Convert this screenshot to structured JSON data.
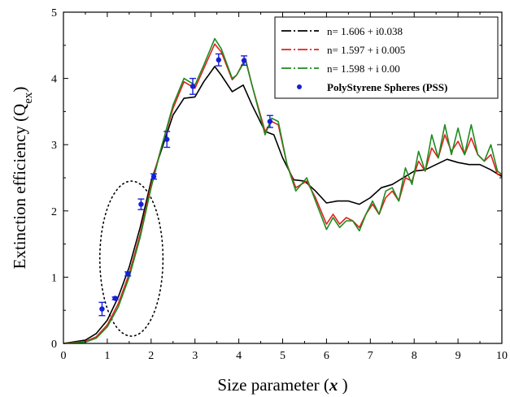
{
  "chart_data": {
    "type": "line",
    "xlabel": "Size parameter (x )",
    "ylabel": "Extinction efficiency (Qex)",
    "xlim": [
      0,
      10
    ],
    "ylim": [
      0,
      5
    ],
    "x_ticks": [
      "0",
      "1",
      "2",
      "3",
      "4",
      "5",
      "6",
      "7",
      "8",
      "9",
      "10"
    ],
    "y_ticks": [
      "0",
      "1",
      "2",
      "3",
      "4",
      "5"
    ],
    "grid": false,
    "legend_position": "top-right",
    "legend": [
      {
        "label": "n= 1.606 + i0.038",
        "color": "#000000",
        "style": "dash-dot"
      },
      {
        "label": "n= 1.597 + i 0.005",
        "color": "#e0221e",
        "style": "dash-dot"
      },
      {
        "label": "n= 1.598 + i 0.00",
        "color": "#1f8a1f",
        "style": "dash-dot"
      },
      {
        "label": "PolyStyrene Spheres (PSS)",
        "color": "#1520d8",
        "style": "marker"
      }
    ],
    "series": [
      {
        "name": "n= 1.606 + i0.038",
        "color": "#000000",
        "x": [
          0,
          0.5,
          0.75,
          1.0,
          1.25,
          1.5,
          1.75,
          2.0,
          2.25,
          2.5,
          2.75,
          3.0,
          3.2,
          3.45,
          3.6,
          3.85,
          4.1,
          4.3,
          4.6,
          4.8,
          5.0,
          5.25,
          5.5,
          5.75,
          6.0,
          6.25,
          6.5,
          6.75,
          7.0,
          7.25,
          7.5,
          7.75,
          8.0,
          8.25,
          8.5,
          8.75,
          9.0,
          9.25,
          9.5,
          9.75,
          10.0
        ],
        "y": [
          0,
          0.05,
          0.15,
          0.35,
          0.7,
          1.15,
          1.75,
          2.45,
          2.95,
          3.45,
          3.7,
          3.72,
          3.95,
          4.18,
          4.05,
          3.8,
          3.9,
          3.6,
          3.2,
          3.15,
          2.8,
          2.47,
          2.45,
          2.3,
          2.12,
          2.15,
          2.15,
          2.1,
          2.2,
          2.35,
          2.4,
          2.5,
          2.6,
          2.62,
          2.7,
          2.78,
          2.73,
          2.7,
          2.7,
          2.62,
          2.52
        ]
      },
      {
        "name": "n= 1.597 + i 0.005",
        "color": "#e0221e",
        "x": [
          0,
          0.5,
          0.75,
          1.0,
          1.25,
          1.5,
          1.75,
          2.0,
          2.25,
          2.5,
          2.75,
          3.0,
          3.2,
          3.45,
          3.6,
          3.85,
          3.95,
          4.15,
          4.3,
          4.6,
          4.75,
          4.9,
          5.1,
          5.3,
          5.55,
          5.75,
          6.0,
          6.15,
          6.3,
          6.45,
          6.6,
          6.75,
          6.9,
          7.05,
          7.2,
          7.35,
          7.5,
          7.65,
          7.8,
          7.95,
          8.1,
          8.25,
          8.4,
          8.55,
          8.7,
          8.85,
          9.0,
          9.15,
          9.3,
          9.45,
          9.6,
          9.75,
          9.9,
          10.0
        ],
        "y": [
          0,
          0.03,
          0.1,
          0.28,
          0.6,
          1.05,
          1.65,
          2.4,
          3.0,
          3.55,
          3.95,
          3.85,
          4.15,
          4.52,
          4.4,
          3.98,
          4.05,
          4.3,
          3.9,
          3.2,
          3.35,
          3.3,
          2.7,
          2.35,
          2.45,
          2.2,
          1.8,
          1.95,
          1.8,
          1.9,
          1.85,
          1.75,
          1.95,
          2.1,
          1.95,
          2.2,
          2.3,
          2.15,
          2.5,
          2.45,
          2.75,
          2.6,
          2.95,
          2.8,
          3.15,
          2.9,
          3.05,
          2.85,
          3.1,
          2.85,
          2.75,
          2.85,
          2.55,
          2.55
        ]
      },
      {
        "name": "n= 1.598 + i 0.00",
        "color": "#1f8a1f",
        "x": [
          0,
          0.5,
          0.75,
          1.0,
          1.25,
          1.5,
          1.75,
          2.0,
          2.25,
          2.5,
          2.75,
          3.0,
          3.2,
          3.45,
          3.6,
          3.85,
          3.95,
          4.15,
          4.3,
          4.6,
          4.75,
          4.9,
          5.1,
          5.3,
          5.55,
          5.75,
          6.0,
          6.15,
          6.3,
          6.45,
          6.6,
          6.75,
          6.9,
          7.05,
          7.2,
          7.35,
          7.5,
          7.65,
          7.8,
          7.95,
          8.1,
          8.25,
          8.4,
          8.55,
          8.7,
          8.85,
          9.0,
          9.15,
          9.3,
          9.45,
          9.6,
          9.75,
          9.9,
          10.0
        ],
        "y": [
          0,
          0.02,
          0.08,
          0.25,
          0.55,
          1.0,
          1.6,
          2.35,
          3.0,
          3.6,
          4.0,
          3.9,
          4.2,
          4.6,
          4.45,
          4.0,
          4.05,
          4.28,
          3.9,
          3.15,
          3.4,
          3.35,
          2.7,
          2.3,
          2.5,
          2.15,
          1.72,
          1.9,
          1.75,
          1.85,
          1.85,
          1.7,
          1.95,
          2.15,
          1.95,
          2.3,
          2.35,
          2.15,
          2.65,
          2.4,
          2.9,
          2.6,
          3.15,
          2.8,
          3.3,
          2.85,
          3.25,
          2.85,
          3.3,
          2.85,
          2.75,
          3.0,
          2.6,
          2.55
        ]
      }
    ],
    "markers": {
      "name": "PolyStyrene Spheres (PSS)",
      "color": "#1520d8",
      "x": [
        0.88,
        1.18,
        1.47,
        1.77,
        2.06,
        2.36,
        2.95,
        3.54,
        4.12,
        4.71
      ],
      "y": [
        0.52,
        0.68,
        1.05,
        2.1,
        2.52,
        3.08,
        3.88,
        4.28,
        4.27,
        3.35
      ],
      "err": [
        0.1,
        0.02,
        0.03,
        0.08,
        0.04,
        0.12,
        0.12,
        0.09,
        0.07,
        0.09
      ]
    },
    "annotation": {
      "shape": "dotted-ellipse",
      "cx": 1.55,
      "cy": 1.28,
      "rx": 0.72,
      "ry": 1.17
    }
  }
}
